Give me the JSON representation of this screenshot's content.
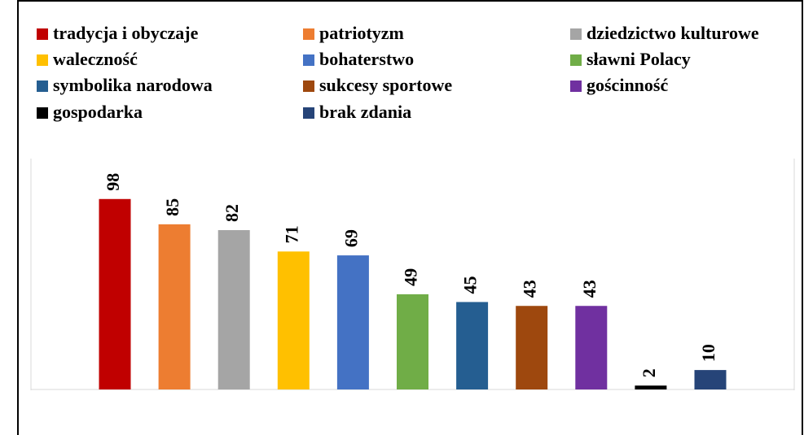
{
  "chart_data": {
    "type": "bar",
    "series": [
      {
        "name": "tradycja i obyczaje",
        "color": "#c00000",
        "values": [
          98
        ]
      },
      {
        "name": "patriotyzm",
        "color": "#ed7d31",
        "values": [
          85
        ]
      },
      {
        "name": "dziedzictwo kulturowe",
        "color": "#a5a5a5",
        "values": [
          82
        ]
      },
      {
        "name": "waleczność",
        "color": "#ffc000",
        "values": [
          71
        ]
      },
      {
        "name": "bohaterstwo",
        "color": "#4472c4",
        "values": [
          69
        ]
      },
      {
        "name": "sławni Polacy",
        "color": "#70ad47",
        "values": [
          49
        ]
      },
      {
        "name": "symbolika narodowa",
        "color": "#255e91",
        "values": [
          45
        ]
      },
      {
        "name": "sukcesy sportowe",
        "color": "#9e480e",
        "values": [
          43
        ]
      },
      {
        "name": "gościnność",
        "color": "#7030a0",
        "values": [
          43
        ]
      },
      {
        "name": "gospodarka",
        "color": "#000000",
        "values": [
          2
        ]
      },
      {
        "name": "brak zdania",
        "color": "#264478",
        "values": [
          10
        ]
      }
    ],
    "ylim": [
      0,
      100
    ],
    "legend": "top"
  }
}
